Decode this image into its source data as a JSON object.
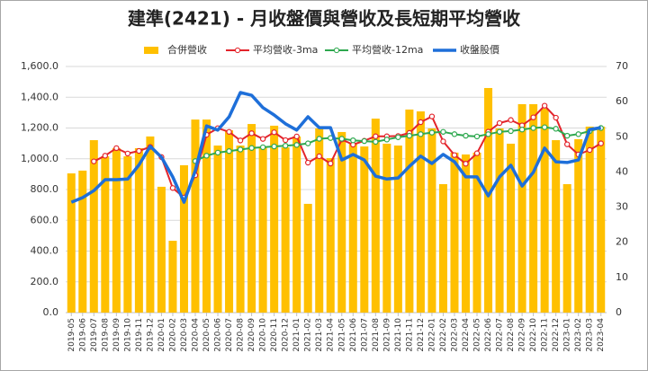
{
  "chart_data": {
    "type": "combo",
    "title": "建準(2421)  - 月收盤價與營收及長短期平均營收",
    "categories": [
      "2019-05",
      "2019-06",
      "2019-07",
      "2019-08",
      "2019-09",
      "2019-10",
      "2019-11",
      "2019-12",
      "2020-01",
      "2020-02",
      "2020-03",
      "2020-04",
      "2020-05",
      "2020-06",
      "2020-07",
      "2020-08",
      "2020-09",
      "2020-10",
      "2020-11",
      "2020-12",
      "2021-01",
      "2021-02",
      "2021-03",
      "2021-04",
      "2021-05",
      "2021-06",
      "2021-07",
      "2021-08",
      "2021-09",
      "2021-10",
      "2021-11",
      "2021-12",
      "2022-01",
      "2022-02",
      "2022-03",
      "2022-04",
      "2022-05",
      "2022-06",
      "2022-07",
      "2022-08",
      "2022-09",
      "2022-10",
      "2022-11",
      "2022-12",
      "2023-01",
      "2023-02",
      "2023-03",
      "2023-04"
    ],
    "series": [
      {
        "name": "合併營收",
        "kind": "bar",
        "color": "#FFC000",
        "values": [
          905,
          923,
          1121,
          1016,
          1069,
          1016,
          1069,
          1145,
          818,
          467,
          958,
          1255,
          1255,
          1086,
          1185,
          1086,
          1226,
          1074,
          1215,
          1074,
          1145,
          707,
          1197,
          1004,
          1174,
          1098,
          1080,
          1261,
          1098,
          1086,
          1320,
          1308,
          1197,
          835,
          1040,
          1028,
          1040,
          1460,
          1197,
          1098,
          1355,
          1355,
          1326,
          1121,
          835,
          1127,
          1209,
          1209
        ]
      },
      {
        "name": "平均營收-3ma",
        "kind": "line-marker",
        "color": "#E3242B",
        "values": [
          null,
          null,
          983,
          1020,
          1069,
          1034,
          1051,
          1077,
          1011,
          810,
          748,
          893,
          1156,
          1199,
          1175,
          1119,
          1166,
          1129,
          1172,
          1121,
          1145,
          975,
          1016,
          969,
          1125,
          1092,
          1117,
          1146,
          1146,
          1148,
          1168,
          1238,
          1275,
          1113,
          1024,
          968,
          1036,
          1176,
          1232,
          1252,
          1217,
          1269,
          1345,
          1267,
          1094,
          1028,
          1057,
          1100
        ]
      },
      {
        "name": "平均營收-12ma",
        "kind": "line-marker",
        "color": "#2EA84F",
        "values": [
          null,
          null,
          null,
          null,
          null,
          null,
          null,
          null,
          null,
          null,
          null,
          985,
          1020,
          1040,
          1050,
          1060,
          1070,
          1075,
          1080,
          1085,
          1090,
          1100,
          1130,
          1135,
          1130,
          1120,
          1115,
          1110,
          1125,
          1140,
          1150,
          1160,
          1170,
          1175,
          1160,
          1150,
          1145,
          1160,
          1175,
          1180,
          1190,
          1200,
          1205,
          1195,
          1150,
          1160,
          1180,
          1200
        ]
      },
      {
        "name": "收盤股價",
        "kind": "line",
        "axis": "y2",
        "color": "#1E6FD9",
        "values": [
          31.4,
          32.7,
          34.7,
          37.8,
          37.8,
          38,
          42,
          47.3,
          44.2,
          38.6,
          31.4,
          40.4,
          53.1,
          51.9,
          55.7,
          62.6,
          61.8,
          58.3,
          56.2,
          53.7,
          51.9,
          55.7,
          52.6,
          52.6,
          43.4,
          45,
          43.4,
          38.8,
          38,
          38.3,
          41.6,
          44.5,
          42.4,
          45,
          42.9,
          38.6,
          38.6,
          33.2,
          38.6,
          41.9,
          36,
          39.9,
          46.8,
          42.9,
          42.7,
          43.4,
          52.1,
          52.6
        ]
      }
    ],
    "ylim": [
      0,
      1600
    ],
    "yticks": [
      {
        "value": 0,
        "label": "0.0"
      },
      {
        "value": 200,
        "label": "200.0"
      },
      {
        "value": 400,
        "label": "400.0"
      },
      {
        "value": 600,
        "label": "600.0"
      },
      {
        "value": 800,
        "label": "800.0"
      },
      {
        "value": 1000,
        "label": "1,000.0"
      },
      {
        "value": 1200,
        "label": "1,200.0"
      },
      {
        "value": 1400,
        "label": "1,400.0"
      },
      {
        "value": 1600,
        "label": "1,600.0"
      }
    ],
    "y2lim": [
      0,
      70
    ],
    "y2ticks": [
      0,
      10,
      20,
      30,
      40,
      50,
      60,
      70
    ],
    "grid": true,
    "legend": "top"
  }
}
